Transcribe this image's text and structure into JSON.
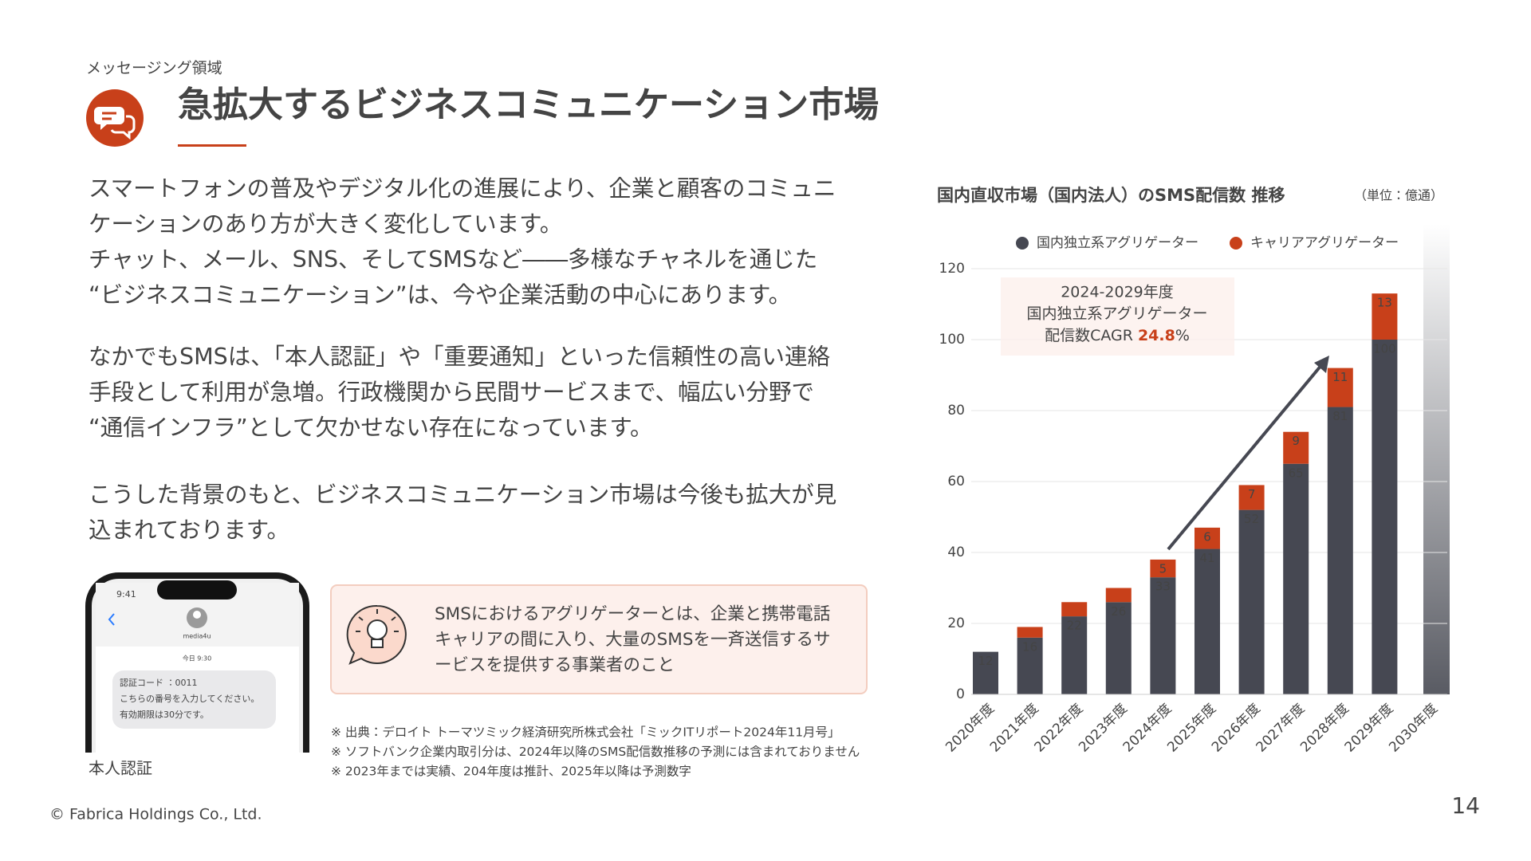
{
  "header": {
    "section": "メッセージング領域",
    "title": "急拡大するビジネスコミュニケーション市場"
  },
  "body": {
    "paragraphs": [
      [
        "スマートフォンの普及やデジタル化の進展により、企業と顧客のコミュニ",
        "ケーションのあり方が大きく変化しています。",
        "チャット、メール、SNS、そしてSMSなど――多様なチャネルを通じた",
        "“ビジネスコミュニケーション”は、今や企業活動の中心にあります。"
      ],
      [
        "なかでもSMSは、「本人認証」や「重要通知」といった信頼性の高い連絡",
        "手段として利用が急増。行政機関から民間サービスまで、幅広い分野で",
        "“通信インフラ”として欠かせない存在になっています。"
      ],
      [
        "こうした背景のもと、ビジネスコミュニケーション市場は今後も拡大が見",
        "込まれております。"
      ]
    ]
  },
  "phone": {
    "time": "9:41",
    "sender": "media4u",
    "timestamp": "今日 9:30",
    "message": [
      "認証コード ：0011",
      "こちらの番号を入力してください。",
      "有効期限は30分です。"
    ],
    "caption": "本人認証"
  },
  "info": {
    "lines": [
      "SMSにおけるアグリゲーターとは、企業と携帯電話",
      "キャリアの間に入り、大量のSMSを一斉送信するサ",
      "ービスを提供する事業者のこと"
    ]
  },
  "notes": [
    "※ 出典：デロイト トーマツミック経済研究所株式会社「ミックITリポート2024年11月号」",
    "※ ソフトバンク企業内取引分は、2024年以降のSMS配信数推移の予測には含まれておりません",
    "※ 2023年までは実績、204年度は推計、2025年以降は予測数字"
  ],
  "footer": {
    "copyright": "© Fabrica Holdings Co., Ltd.",
    "page": "14"
  },
  "chart_data": {
    "type": "stacked-bar",
    "title": "国内直収市場（国内法人）のSMS配信数 推移",
    "unit": "（単位：億通）",
    "categories": [
      "2020年度",
      "2021年度",
      "2022年度",
      "2023年度",
      "2024年度",
      "2025年度",
      "2026年度",
      "2027年度",
      "2028年度",
      "2029年度",
      "2030年度"
    ],
    "series": [
      {
        "name": "国内独立系アグリゲーター",
        "color": "#464852",
        "values": [
          12,
          16,
          22,
          26,
          33,
          41,
          52,
          65,
          81,
          100,
          null
        ]
      },
      {
        "name": "キャリアアグリゲーター",
        "color": "#c8401a",
        "values": [
          0,
          3,
          4,
          4,
          5,
          6,
          7,
          9,
          11,
          13,
          null
        ]
      }
    ],
    "ylim": [
      0,
      120
    ],
    "yticks": [
      0,
      20,
      40,
      60,
      80,
      100,
      120
    ],
    "grid": true,
    "annotation": {
      "lines": [
        "2024-2029年度",
        "国内独立系アグリゲーター"
      ],
      "cagr_label": "配信数CAGR",
      "cagr_value": "24.8",
      "cagr_unit": "%"
    }
  }
}
